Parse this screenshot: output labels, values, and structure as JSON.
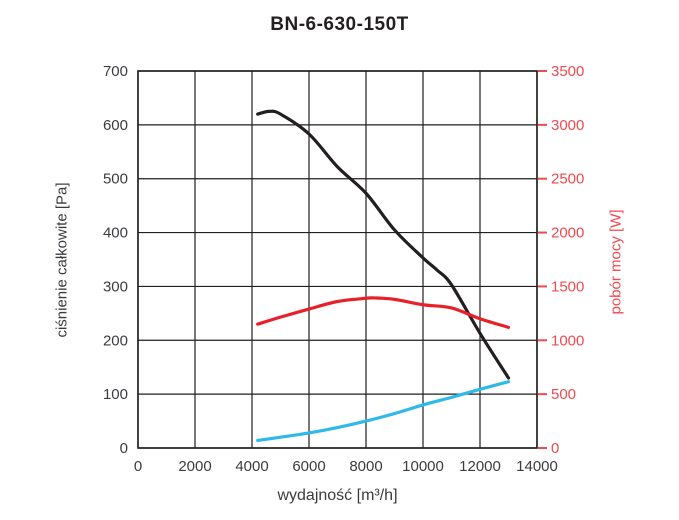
{
  "title": "BN-6-630-150T",
  "colors": {
    "background": "#ffffff",
    "grid": "#1f1f1f",
    "left_axis_text": "#3c3b40",
    "right_axis_text": "#ef4a50",
    "black_curve": "#231f20",
    "red_curve": "#e8202a",
    "blue_curve": "#2fb9e8"
  },
  "chart_data": {
    "type": "line",
    "title": "BN-6-630-150T",
    "xlabel": "wydajność [m³/h]",
    "ylabel_left": "ciśnienie całkowite [Pa]",
    "ylabel_right": "pobór mocy [W]",
    "xlim": [
      0,
      14000
    ],
    "ylim_left": [
      0,
      700
    ],
    "ylim_right": [
      0,
      3500
    ],
    "x_ticks": [
      0,
      2000,
      4000,
      6000,
      8000,
      10000,
      12000,
      14000
    ],
    "y_left_ticks": [
      0,
      100,
      200,
      300,
      400,
      500,
      600,
      700
    ],
    "y_right_ticks": [
      0,
      500,
      1000,
      1500,
      2000,
      2500,
      3000,
      3500
    ],
    "grid": true,
    "legend": "none",
    "series": [
      {
        "name": "black-pressure-curve",
        "axis": "left",
        "color": "#231f20",
        "x": [
          4200,
          4600,
          5000,
          6000,
          7000,
          8000,
          9000,
          10000,
          10500,
          11000,
          12000,
          13000
        ],
        "y": [
          620,
          625,
          620,
          583,
          522,
          473,
          405,
          353,
          330,
          303,
          213,
          130
        ]
      },
      {
        "name": "red-power-curve",
        "axis": "right",
        "color": "#e8202a",
        "x": [
          4200,
          5000,
          6000,
          7000,
          8000,
          8300,
          9000,
          10000,
          11000,
          12000,
          13000
        ],
        "y": [
          1150,
          1215,
          1290,
          1360,
          1390,
          1393,
          1380,
          1330,
          1300,
          1200,
          1120
        ]
      },
      {
        "name": "blue-curve",
        "axis": "right",
        "color": "#2fb9e8",
        "x": [
          4200,
          5000,
          6000,
          7000,
          8000,
          9000,
          10000,
          11000,
          12000,
          13000
        ],
        "y": [
          70,
          100,
          140,
          190,
          250,
          320,
          400,
          470,
          545,
          615
        ]
      }
    ]
  }
}
